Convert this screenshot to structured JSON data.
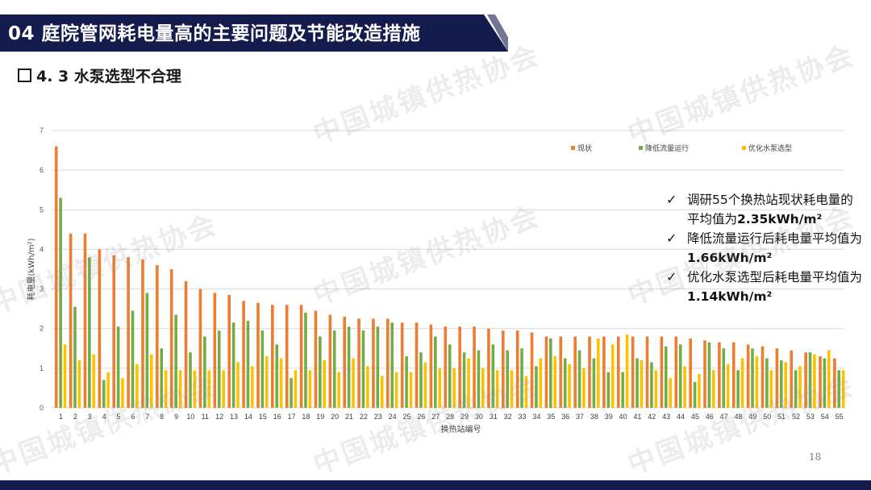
{
  "header": {
    "title": "04  庭院管网耗电量高的主要问题及节能改造措施"
  },
  "section": {
    "title": "4. 3  水泵选型不合理"
  },
  "page_number": "18",
  "watermark": "中国城镇供热协会",
  "notes": [
    {
      "text": "调研55个换热站现状耗电量的平均值为",
      "value": "2.35kWh/m²"
    },
    {
      "text": "降低流量运行后耗电量平均值为",
      "value": "1.66kWh/m²"
    },
    {
      "text": "优化水泵选型后耗电量平均值为",
      "value": "1.14kWh/m²"
    }
  ],
  "colors": {
    "header_bg": "#141b4d",
    "current": "#ed7d31",
    "reduced": "#70ad47",
    "optimized": "#ffc000"
  },
  "chart_data": {
    "type": "bar",
    "xlabel": "换热站编号",
    "ylabel": "耗电量(kWh/m²)",
    "ylim": [
      0,
      7
    ],
    "yticks": [
      0,
      1,
      2,
      3,
      4,
      5,
      6,
      7
    ],
    "legend_position": "top-right",
    "categories": [
      "1",
      "2",
      "3",
      "4",
      "5",
      "6",
      "7",
      "8",
      "9",
      "10",
      "11",
      "12",
      "13",
      "14",
      "15",
      "16",
      "17",
      "18",
      "19",
      "20",
      "21",
      "22",
      "23",
      "24",
      "25",
      "26",
      "27",
      "28",
      "29",
      "30",
      "31",
      "32",
      "33",
      "34",
      "35",
      "36",
      "37",
      "38",
      "39",
      "40",
      "41",
      "42",
      "43",
      "44",
      "45",
      "46",
      "47",
      "48",
      "49",
      "50",
      "51",
      "52",
      "53",
      "54",
      "55"
    ],
    "series": [
      {
        "name": "现状",
        "values": [
          6.6,
          4.4,
          4.4,
          4.0,
          3.85,
          3.8,
          3.75,
          3.6,
          3.5,
          3.2,
          3.0,
          2.9,
          2.85,
          2.7,
          2.65,
          2.6,
          2.6,
          2.6,
          2.45,
          2.35,
          2.3,
          2.25,
          2.25,
          2.25,
          2.15,
          2.15,
          2.1,
          2.05,
          2.05,
          2.05,
          2.0,
          1.95,
          1.95,
          1.9,
          1.8,
          1.8,
          1.8,
          1.8,
          1.8,
          1.8,
          1.8,
          1.8,
          1.8,
          1.8,
          1.75,
          1.7,
          1.65,
          1.65,
          1.6,
          1.55,
          1.5,
          1.45,
          1.4,
          1.3,
          1.25
        ]
      },
      {
        "name": "降低流量运行",
        "values": [
          5.3,
          2.55,
          3.8,
          0.7,
          2.05,
          2.45,
          2.9,
          1.5,
          2.35,
          1.4,
          1.8,
          1.95,
          2.15,
          2.2,
          1.95,
          1.6,
          0.75,
          2.4,
          1.8,
          1.95,
          2.05,
          1.95,
          2.05,
          2.15,
          1.3,
          1.4,
          1.8,
          1.6,
          1.4,
          1.45,
          1.6,
          1.45,
          1.5,
          1.05,
          1.75,
          1.25,
          1.45,
          1.25,
          0.9,
          0.9,
          1.25,
          1.15,
          1.55,
          1.6,
          0.65,
          1.65,
          1.5,
          0.95,
          1.5,
          1.25,
          1.2,
          0.95,
          1.4,
          1.25,
          0.95
        ]
      },
      {
        "name": "优化水泵选型",
        "values": [
          1.6,
          1.2,
          1.35,
          0.9,
          0.75,
          1.1,
          1.35,
          0.95,
          0.95,
          0.95,
          0.95,
          0.95,
          1.15,
          1.05,
          1.3,
          1.25,
          0.95,
          0.95,
          1.2,
          0.9,
          1.25,
          1.05,
          0.8,
          0.9,
          0.9,
          1.15,
          1.0,
          1.0,
          1.25,
          1.0,
          0.95,
          0.95,
          0.8,
          1.25,
          1.3,
          1.1,
          1.0,
          1.75,
          1.6,
          1.85,
          1.2,
          0.95,
          0.75,
          1.05,
          0.85,
          0.95,
          1.1,
          1.25,
          1.3,
          0.95,
          1.15,
          1.05,
          1.35,
          1.45,
          0.95
        ]
      }
    ]
  }
}
